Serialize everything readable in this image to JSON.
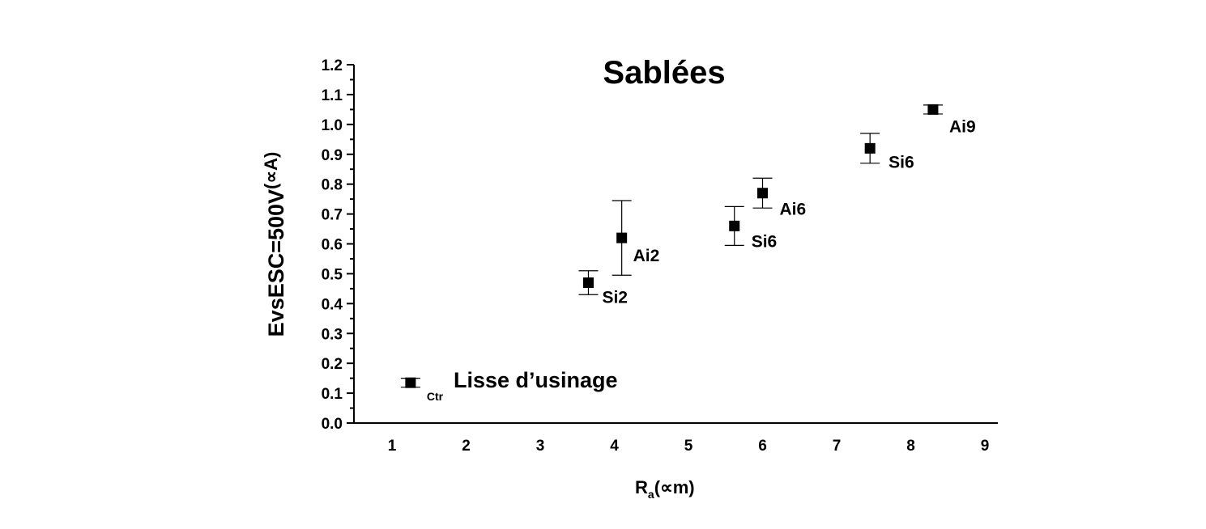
{
  "chart_data": {
    "type": "scatter",
    "title": "Sablées",
    "xlabel": {
      "main": "R",
      "sub": "a",
      "unit": "(∝m)"
    },
    "ylabel": {
      "main": "EvsESC=500V",
      "unit": "(∝A)"
    },
    "xlim": [
      0.5,
      9.2
    ],
    "ylim": [
      0.0,
      1.2
    ],
    "xticks": [
      "1",
      "2",
      "3",
      "4",
      "5",
      "6",
      "7",
      "8",
      "9"
    ],
    "yticks": [
      "0.0",
      "0.1",
      "0.2",
      "0.3",
      "0.4",
      "0.5",
      "0.6",
      "0.7",
      "0.8",
      "0.9",
      "1.0",
      "1.1",
      "1.2"
    ],
    "grid": false,
    "marker": "square",
    "color": "#000000",
    "points": [
      {
        "label": "Ctr",
        "x": 1.25,
        "y": 0.135,
        "err_low": 0.12,
        "err_high": 0.15
      },
      {
        "label": "Si2",
        "x": 3.65,
        "y": 0.47,
        "err_low": 0.43,
        "err_high": 0.51
      },
      {
        "label": "Ai2",
        "x": 4.1,
        "y": 0.62,
        "err_low": 0.495,
        "err_high": 0.745
      },
      {
        "label": "Si6",
        "x": 5.62,
        "y": 0.66,
        "err_low": 0.595,
        "err_high": 0.725
      },
      {
        "label": "Ai6",
        "x": 6.0,
        "y": 0.77,
        "err_low": 0.72,
        "err_high": 0.82
      },
      {
        "label": "Si6",
        "x": 7.45,
        "y": 0.92,
        "err_low": 0.87,
        "err_high": 0.97
      },
      {
        "label": "Ai9",
        "x": 8.3,
        "y": 1.05,
        "err_low": 1.035,
        "err_high": 1.065
      }
    ],
    "annotations": [
      {
        "text": "Lisse d’usinage"
      }
    ]
  }
}
